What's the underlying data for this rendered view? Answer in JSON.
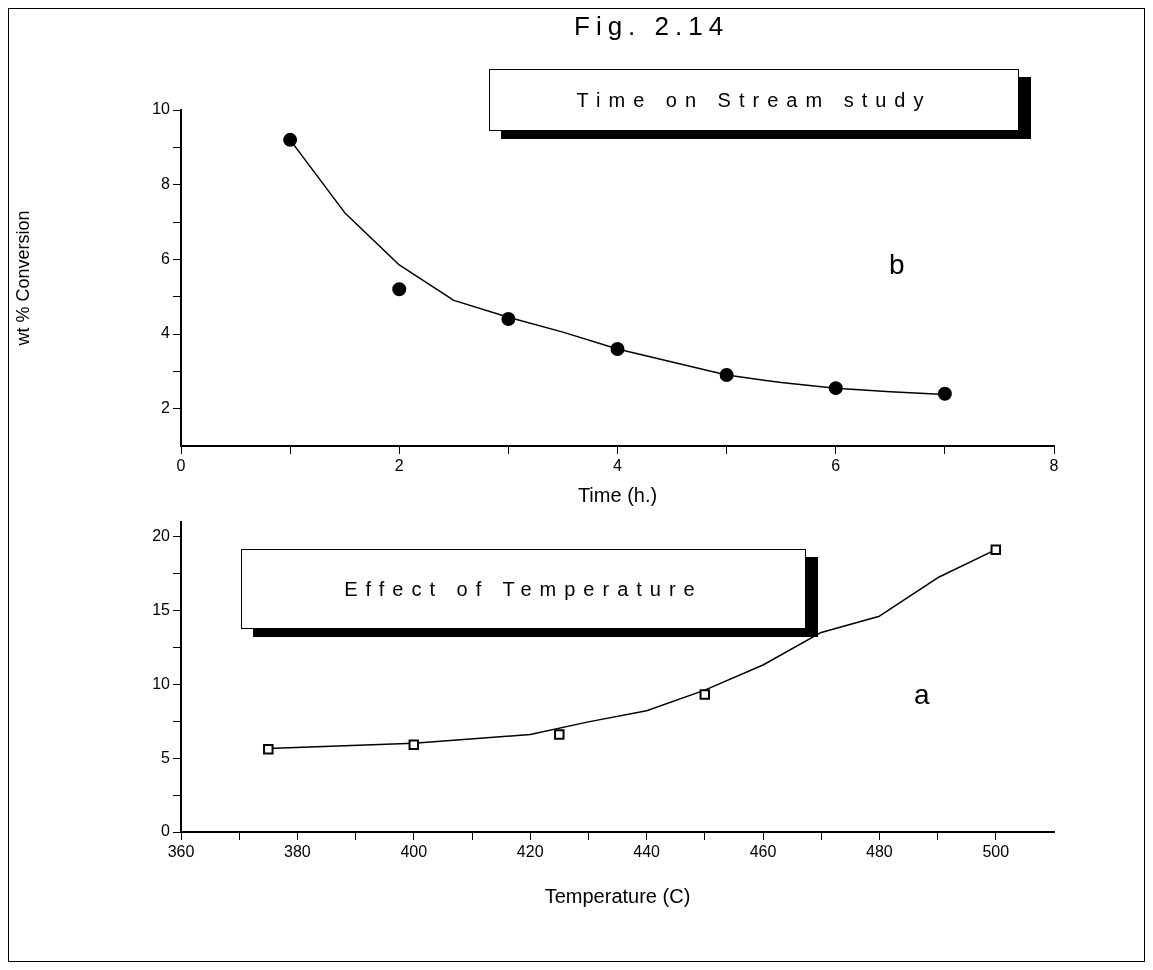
{
  "chart_data": [
    {
      "type": "scatter",
      "title": "Fig. 2.14",
      "xlabel": "Time (h.)",
      "ylabel": "wt % Conversion",
      "annotations": [
        "Time on Stream study",
        "b"
      ],
      "xlim": [
        0,
        8
      ],
      "xticks": [
        0,
        {
          "value": 1,
          "label": null
        },
        2,
        {
          "value": 3,
          "label": null
        },
        4,
        {
          "value": 5,
          "label": null
        },
        6,
        {
          "value": 7,
          "label": null
        },
        8
      ],
      "ylim": [
        1,
        10
      ],
      "yticks": [
        2,
        {
          "value": 3,
          "label": null
        },
        4,
        {
          "value": 5,
          "label": null
        },
        6,
        {
          "value": 7,
          "label": null
        },
        8,
        {
          "value": 9,
          "label": null
        },
        10
      ],
      "grid": false,
      "legend": false,
      "series": [
        {
          "type": "scatter",
          "marker": "circle",
          "color": "#000000",
          "x": [
            1,
            2,
            3,
            4,
            5,
            6,
            7
          ],
          "values": [
            9.2,
            5.2,
            4.4,
            3.6,
            2.9,
            2.55,
            2.4
          ]
        },
        {
          "type": "line",
          "color": "#000000",
          "x": [
            1,
            1.5,
            2,
            2.5,
            3,
            3.5,
            4,
            4.5,
            5,
            5.5,
            6,
            6.5,
            7
          ],
          "values": [
            9.2,
            7.25,
            5.85,
            4.9,
            4.45,
            4.05,
            3.6,
            3.25,
            2.9,
            2.7,
            2.55,
            2.45,
            2.38
          ]
        }
      ]
    },
    {
      "type": "scatter",
      "xlabel": "Temperature (C)",
      "annotations": [
        "Effect of Temperature",
        "a"
      ],
      "xlim": [
        360,
        510
      ],
      "xticks": [
        360,
        {
          "value": 370,
          "label": null
        },
        380,
        {
          "value": 390,
          "label": null
        },
        400,
        {
          "value": 410,
          "label": null
        },
        420,
        {
          "value": 430,
          "label": null
        },
        440,
        {
          "value": 450,
          "label": null
        },
        460,
        {
          "value": 470,
          "label": null
        },
        480,
        {
          "value": 490,
          "label": null
        },
        500
      ],
      "ylim": [
        0,
        21
      ],
      "yticks": [
        0,
        {
          "value": 2.5,
          "label": null
        },
        5,
        {
          "value": 7.5,
          "label": null
        },
        10,
        {
          "value": 12.5,
          "label": null
        },
        15,
        {
          "value": 17.5,
          "label": null
        },
        20
      ],
      "grid": false,
      "legend": false,
      "series": [
        {
          "type": "scatter",
          "marker": "square",
          "color": "#000000",
          "x": [
            375,
            400,
            425,
            450,
            500
          ],
          "values": [
            5.6,
            5.9,
            6.6,
            9.3,
            19.1
          ]
        },
        {
          "type": "line",
          "color": "#000000",
          "x": [
            375,
            400,
            420,
            430,
            440,
            450,
            460,
            470,
            480,
            490,
            500
          ],
          "values": [
            5.65,
            6.0,
            6.6,
            7.45,
            8.2,
            9.6,
            11.3,
            13.5,
            14.6,
            17.2,
            19.1
          ]
        }
      ]
    }
  ]
}
